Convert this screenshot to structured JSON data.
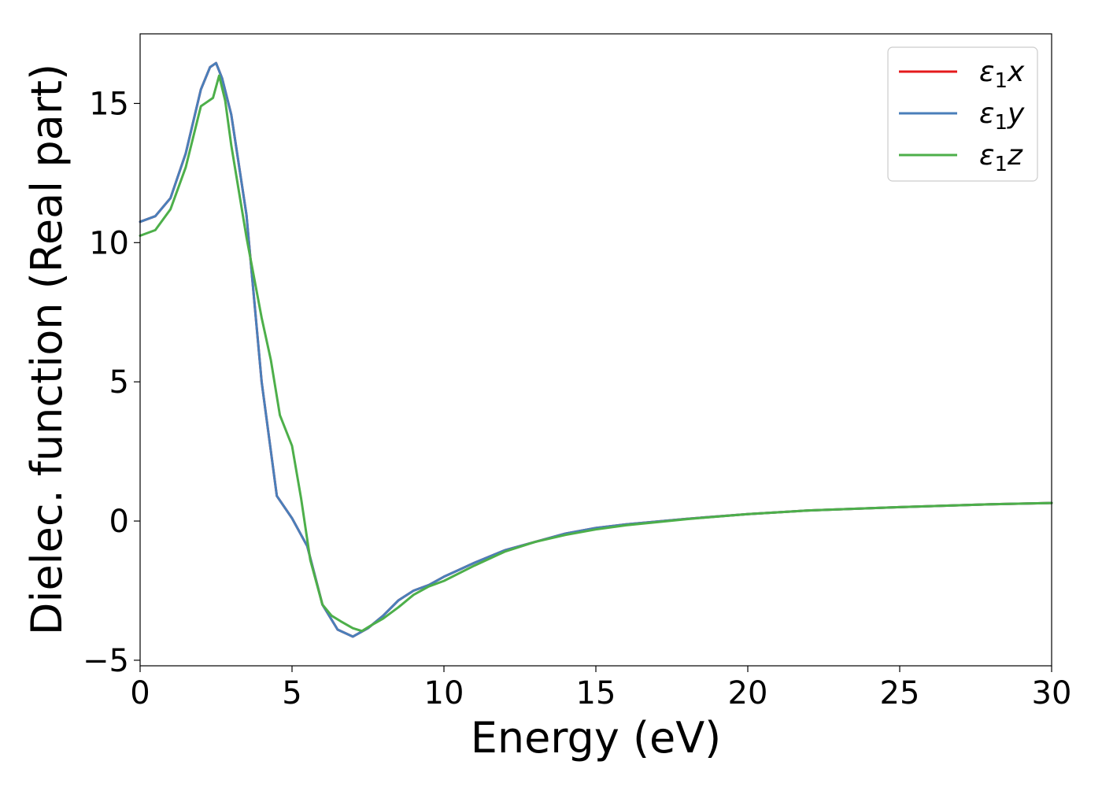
{
  "chart_data": {
    "type": "line",
    "xlabel": "Energy (eV)",
    "ylabel": "Dielec. function (Real part)",
    "xlim": [
      0,
      30
    ],
    "ylim": [
      -5.2,
      17.5
    ],
    "xticks": [
      0,
      5,
      10,
      15,
      20,
      25,
      30
    ],
    "xtick_labels": [
      "0",
      "5",
      "10",
      "15",
      "20",
      "25",
      "30"
    ],
    "yticks": [
      -5,
      0,
      5,
      10,
      15
    ],
    "ytick_labels": [
      "−5",
      "0",
      "5",
      "10",
      "15"
    ],
    "grid": false,
    "legend_position": "top-right",
    "series": [
      {
        "name": "ε1x",
        "legend_base": "ε",
        "legend_sub": "1",
        "legend_var": "x",
        "color": "#e41a1c",
        "x": [
          0,
          0.5,
          1.0,
          1.5,
          2.0,
          2.3,
          2.5,
          2.7,
          3.0,
          3.5,
          4.0,
          4.5,
          5.0,
          5.5,
          6.0,
          6.5,
          7.0,
          7.5,
          8.0,
          8.5,
          9.0,
          9.5,
          10.0,
          10.5,
          11.0,
          12.0,
          13.0,
          14.0,
          15.0,
          16.0,
          18.0,
          20.0,
          22.0,
          25.0,
          28.0,
          30.0
        ],
        "y": [
          10.75,
          10.95,
          11.6,
          13.2,
          15.5,
          16.3,
          16.45,
          15.9,
          14.6,
          11.0,
          5.0,
          0.9,
          0.1,
          -0.9,
          -3.0,
          -3.9,
          -4.15,
          -3.85,
          -3.4,
          -2.85,
          -2.5,
          -2.3,
          -2.0,
          -1.75,
          -1.5,
          -1.05,
          -0.75,
          -0.45,
          -0.25,
          -0.12,
          0.08,
          0.25,
          0.38,
          0.5,
          0.6,
          0.65
        ]
      },
      {
        "name": "ε1y",
        "legend_base": "ε",
        "legend_sub": "1",
        "legend_var": "y",
        "color": "#4a7fba",
        "x": [
          0,
          0.5,
          1.0,
          1.5,
          2.0,
          2.3,
          2.5,
          2.7,
          3.0,
          3.5,
          4.0,
          4.5,
          5.0,
          5.5,
          6.0,
          6.5,
          7.0,
          7.5,
          8.0,
          8.5,
          9.0,
          9.5,
          10.0,
          10.5,
          11.0,
          12.0,
          13.0,
          14.0,
          15.0,
          16.0,
          18.0,
          20.0,
          22.0,
          25.0,
          28.0,
          30.0
        ],
        "y": [
          10.75,
          10.95,
          11.6,
          13.2,
          15.5,
          16.3,
          16.45,
          15.9,
          14.6,
          11.0,
          5.0,
          0.9,
          0.1,
          -0.9,
          -3.0,
          -3.9,
          -4.15,
          -3.85,
          -3.4,
          -2.85,
          -2.5,
          -2.3,
          -2.0,
          -1.75,
          -1.5,
          -1.05,
          -0.75,
          -0.45,
          -0.25,
          -0.12,
          0.08,
          0.25,
          0.38,
          0.5,
          0.6,
          0.65
        ]
      },
      {
        "name": "ε1z",
        "legend_base": "ε",
        "legend_sub": "1",
        "legend_var": "z",
        "color": "#4daf4a",
        "x": [
          0,
          0.5,
          1.0,
          1.5,
          2.0,
          2.2,
          2.4,
          2.6,
          2.8,
          3.0,
          3.5,
          4.0,
          4.3,
          4.6,
          5.0,
          5.3,
          5.6,
          6.0,
          6.3,
          6.6,
          7.0,
          7.3,
          7.6,
          8.0,
          8.5,
          9.0,
          9.5,
          10.0,
          11.0,
          12.0,
          13.0,
          14.0,
          15.0,
          16.0,
          18.0,
          20.0,
          22.0,
          25.0,
          28.0,
          30.0
        ],
        "y": [
          10.25,
          10.45,
          11.2,
          12.7,
          14.9,
          15.05,
          15.2,
          16.0,
          15.1,
          13.5,
          10.2,
          7.3,
          5.8,
          3.8,
          2.7,
          0.8,
          -1.4,
          -3.0,
          -3.4,
          -3.6,
          -3.85,
          -3.95,
          -3.75,
          -3.5,
          -3.1,
          -2.65,
          -2.35,
          -2.15,
          -1.6,
          -1.1,
          -0.75,
          -0.5,
          -0.3,
          -0.15,
          0.07,
          0.25,
          0.38,
          0.5,
          0.6,
          0.65
        ]
      }
    ]
  }
}
